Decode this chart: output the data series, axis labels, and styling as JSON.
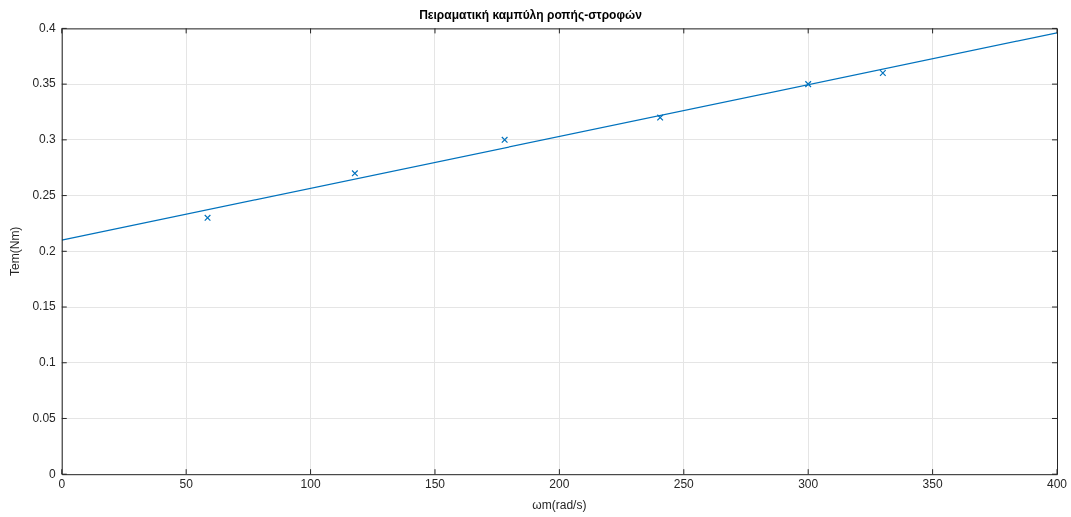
{
  "chart_data": {
    "type": "scatter",
    "title": "Πειραματική καμπύλη ροπής-στροφών",
    "xlabel": "ωm(rad/s)",
    "ylabel": "Tem(Nm)",
    "series": [
      {
        "type": "scatter",
        "color": "#0072bd",
        "marker": "cross",
        "x": [
          58.6,
          117.8,
          178,
          240.5,
          300,
          330
        ],
        "values": [
          0.23,
          0.27,
          0.3,
          0.32,
          0.35,
          0.36
        ]
      },
      {
        "type": "line",
        "color": "#0072bd",
        "marker": "none",
        "line_style": "solid",
        "x": [
          0,
          400
        ],
        "values": [
          0.21,
          0.396
        ]
      }
    ],
    "xlim": [
      0,
      400
    ],
    "xticks": [
      0,
      50,
      100,
      150,
      200,
      250,
      300,
      350,
      400
    ],
    "ylim": [
      0,
      0.4
    ],
    "yticks": [
      0,
      0.05,
      0.1,
      0.15,
      0.2,
      0.25,
      0.3,
      0.35,
      0.4
    ],
    "grid": true,
    "legend": false
  }
}
